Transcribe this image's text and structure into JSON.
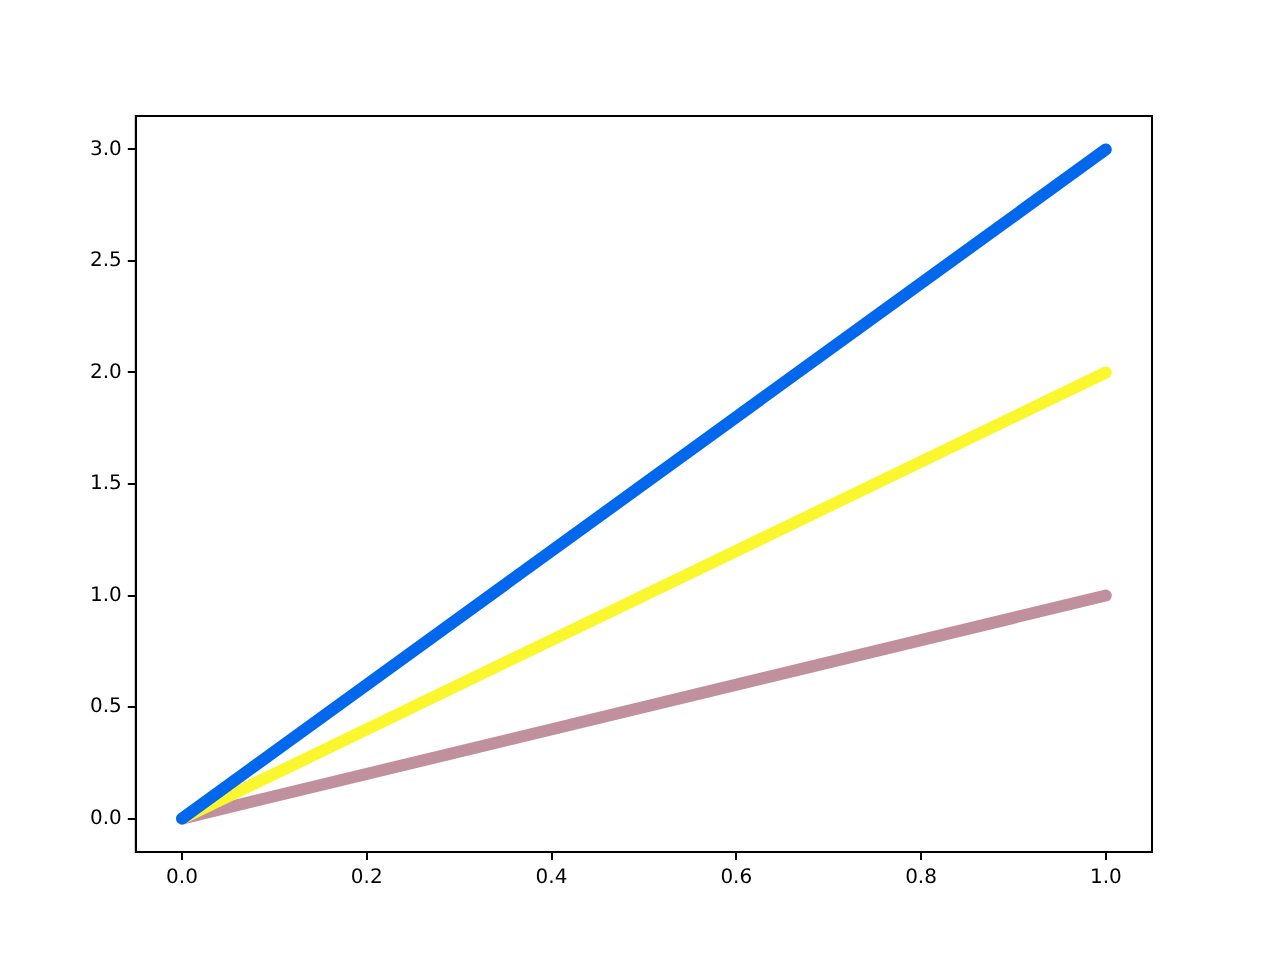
{
  "chart_data": {
    "type": "line",
    "x": [
      0,
      1
    ],
    "series": [
      {
        "color": "#0167ec",
        "values": [
          0,
          3
        ]
      },
      {
        "color": "#fbf72f",
        "values": [
          0,
          2
        ]
      },
      {
        "color": "#c0909f",
        "values": [
          0,
          1
        ]
      }
    ],
    "xlim": [
      -0.05,
      1.05
    ],
    "ylim": [
      -0.15,
      3.15
    ],
    "xticks": [
      {
        "value": 0,
        "label": "0.0"
      },
      {
        "value": 0.2,
        "label": "0.2"
      },
      {
        "value": 0.4,
        "label": "0.4"
      },
      {
        "value": 0.6,
        "label": "0.6"
      },
      {
        "value": 0.8,
        "label": "0.8"
      },
      {
        "value": 1,
        "label": "1.0"
      }
    ],
    "yticks": [
      {
        "value": 0,
        "label": "0.0"
      },
      {
        "value": 0.5,
        "label": "0.5"
      },
      {
        "value": 1,
        "label": "1.0"
      },
      {
        "value": 1.5,
        "label": "1.5"
      },
      {
        "value": 2,
        "label": "2.0"
      },
      {
        "value": 2.5,
        "label": "2.5"
      },
      {
        "value": 3,
        "label": "3.0"
      }
    ]
  }
}
